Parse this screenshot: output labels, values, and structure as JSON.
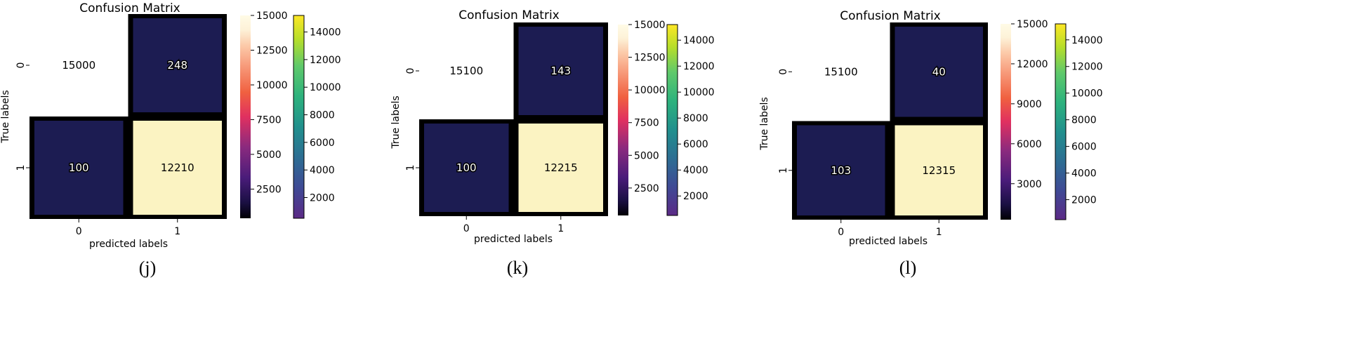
{
  "colors": {
    "dark_cell": "#1c1c52",
    "light_cell": "#fbf3c2",
    "cell_border": "#000000"
  },
  "chart_data": [
    {
      "type": "heatmap",
      "title": "Confusion Matrix",
      "xlabel": "predicted labels",
      "ylabel": "True labels",
      "x_ticks": [
        "0",
        "1"
      ],
      "y_ticks": [
        "0",
        "1"
      ],
      "values": [
        [
          15000,
          248
        ],
        [
          100,
          12210
        ]
      ],
      "colorbar1_ticks": [
        "15000",
        "12500",
        "10000",
        "7500",
        "5000",
        "2500"
      ],
      "colorbar2_ticks": [
        "14000",
        "12000",
        "10000",
        "8000",
        "6000",
        "4000",
        "2000"
      ],
      "caption": "(j)"
    },
    {
      "type": "heatmap",
      "title": "Confusion Matrix",
      "xlabel": "predicted labels",
      "ylabel": "True labels",
      "x_ticks": [
        "0",
        "1"
      ],
      "y_ticks": [
        "0",
        "1"
      ],
      "values": [
        [
          15100,
          143
        ],
        [
          100,
          12215
        ]
      ],
      "colorbar1_ticks": [
        "15000",
        "12500",
        "10000",
        "7500",
        "5000",
        "2500"
      ],
      "colorbar2_ticks": [
        "14000",
        "12000",
        "10000",
        "8000",
        "6000",
        "4000",
        "2000"
      ],
      "caption": "(k)"
    },
    {
      "type": "heatmap",
      "title": "Confusion Matrix",
      "xlabel": "predicted labels",
      "ylabel": "True labels",
      "x_ticks": [
        "0",
        "1"
      ],
      "y_ticks": [
        "0",
        "1"
      ],
      "values": [
        [
          15100,
          40
        ],
        [
          103,
          12315
        ]
      ],
      "colorbar1_ticks": [
        "15000",
        "12000",
        "9000",
        "6000",
        "3000"
      ],
      "colorbar2_ticks": [
        "14000",
        "12000",
        "10000",
        "8000",
        "6000",
        "4000",
        "2000"
      ],
      "caption": "(l)"
    }
  ]
}
